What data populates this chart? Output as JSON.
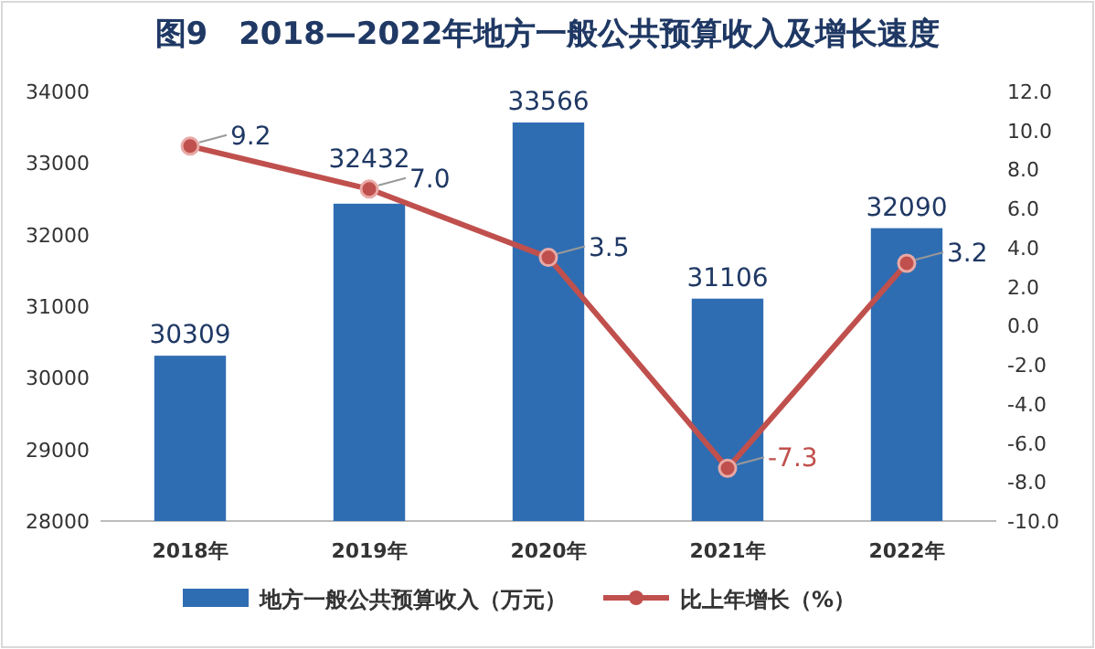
{
  "chart_data": {
    "type": "bar",
    "title": "图9　2018—2022年地方一般公共预算收入及增长速度",
    "categories": [
      "2018年",
      "2019年",
      "2020年",
      "2021年",
      "2022年"
    ],
    "series": [
      {
        "name": "地方一般公共预算收入（万元）",
        "color": "#2f6db3",
        "values": [
          30309,
          32432,
          33566,
          31106,
          32090
        ]
      },
      {
        "name": "比上年增长（%）",
        "type": "line",
        "axis": "y2",
        "color": "#c0504d",
        "values": [
          9.2,
          7.0,
          3.5,
          -7.3,
          3.2
        ],
        "value_labels": [
          "9.2",
          "7.0",
          "3.5",
          "-7.3",
          "3.2"
        ]
      }
    ],
    "ylim": [
      28000,
      34000
    ],
    "yticks": [
      28000,
      29000,
      30000,
      31000,
      32000,
      33000,
      34000
    ],
    "y2lim": [
      -10,
      12
    ],
    "y2ticks": [
      {
        "value": -10,
        "label": "-10.0"
      },
      {
        "value": -8,
        "label": "-8.0"
      },
      {
        "value": -6,
        "label": "-6.0"
      },
      {
        "value": -4,
        "label": "-4.0"
      },
      {
        "value": -2,
        "label": "-2.0"
      },
      {
        "value": 0,
        "label": "0.0"
      },
      {
        "value": 2,
        "label": "2.0"
      },
      {
        "value": 4,
        "label": "4.0"
      },
      {
        "value": 6,
        "label": "6.0"
      },
      {
        "value": 8,
        "label": "8.0"
      },
      {
        "value": 10,
        "label": "10.0"
      },
      {
        "value": 12,
        "label": "12.0"
      }
    ],
    "data_labels": true,
    "marker": "circle",
    "legend": "bottom",
    "grid": false
  }
}
